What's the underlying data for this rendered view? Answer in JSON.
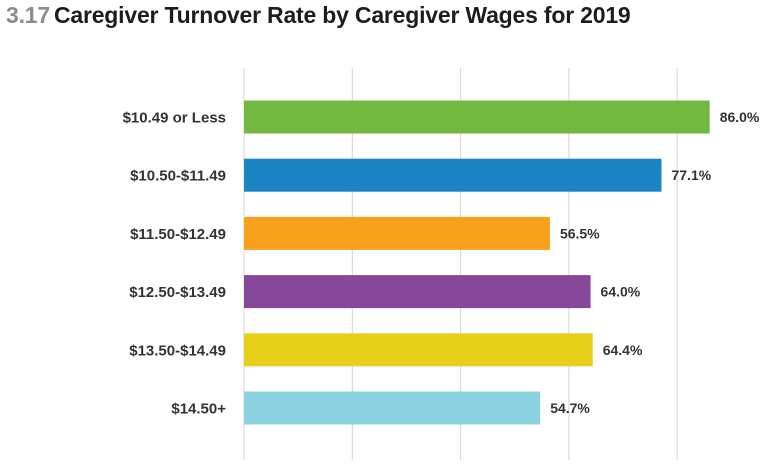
{
  "header": {
    "number": "3.17",
    "title": "Caregiver Turnover Rate by Caregiver Wages for 2019"
  },
  "chart_data": {
    "type": "bar",
    "orientation": "horizontal",
    "title": "Caregiver Turnover Rate by Caregiver Wages for 2019",
    "xlabel": "",
    "ylabel": "",
    "categories": [
      "$10.49 or Less",
      "$10.50-$11.49",
      "$11.50-$12.49",
      "$12.50-$13.49",
      "$13.50-$14.49",
      "$14.50+"
    ],
    "values": [
      86.0,
      77.1,
      56.5,
      64.0,
      64.4,
      54.7
    ],
    "value_labels": [
      "86.0%",
      "77.1%",
      "56.5%",
      "64.0%",
      "64.4%",
      "54.7%"
    ],
    "colors": [
      "#72b843",
      "#1b84c4",
      "#f7a11c",
      "#874798",
      "#e6d019",
      "#8bd1e0"
    ],
    "xlim": [
      0,
      100
    ],
    "grid": true,
    "legend": "none"
  }
}
